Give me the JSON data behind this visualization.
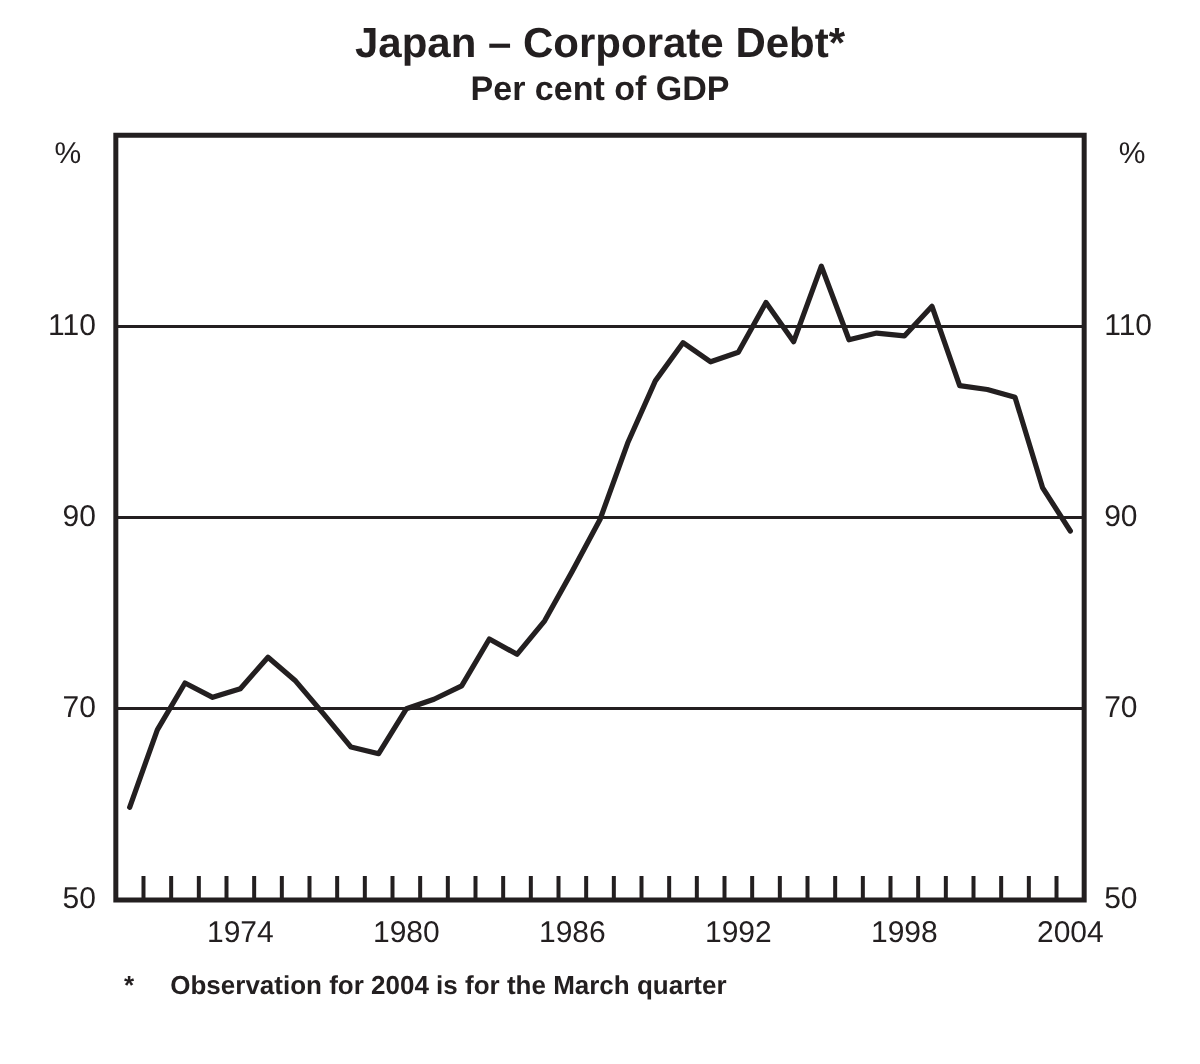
{
  "chart_data": {
    "type": "line",
    "title": "Japan – Corporate Debt*",
    "subtitle": "Per cent of GDP",
    "ylabel": "%",
    "y2label": "%",
    "categories": [
      null,
      null,
      null,
      null,
      "1974",
      null,
      null,
      null,
      null,
      null,
      "1980",
      null,
      null,
      null,
      null,
      null,
      "1986",
      null,
      null,
      null,
      null,
      null,
      "1992",
      null,
      null,
      null,
      null,
      null,
      "1998",
      null,
      null,
      null,
      null,
      null,
      "2004"
    ],
    "series": [
      {
        "color": "#231f20",
        "values": [
          59.7,
          67.8,
          72.7,
          71.2,
          72.1,
          75.4,
          72.9,
          69.5,
          66.0,
          65.3,
          70.0,
          71.0,
          72.4,
          77.3,
          75.7,
          79.2,
          84.4,
          89.8,
          97.8,
          104.3,
          108.3,
          106.3,
          107.3,
          112.5,
          108.4,
          116.3,
          108.6,
          109.3,
          109.0,
          112.1,
          103.8,
          103.4,
          102.6,
          93.1,
          88.6
        ]
      }
    ],
    "ylim": [
      50,
      130
    ],
    "yticks": [
      50,
      70,
      90,
      110
    ],
    "y2lim": [
      50,
      130
    ],
    "y2ticks": [
      50,
      70,
      90,
      110
    ],
    "grid": "y",
    "legend": false,
    "marker": "none",
    "line_style": "solid",
    "annotations": [
      "*     Observation for 2004 is for the March quarter"
    ]
  }
}
